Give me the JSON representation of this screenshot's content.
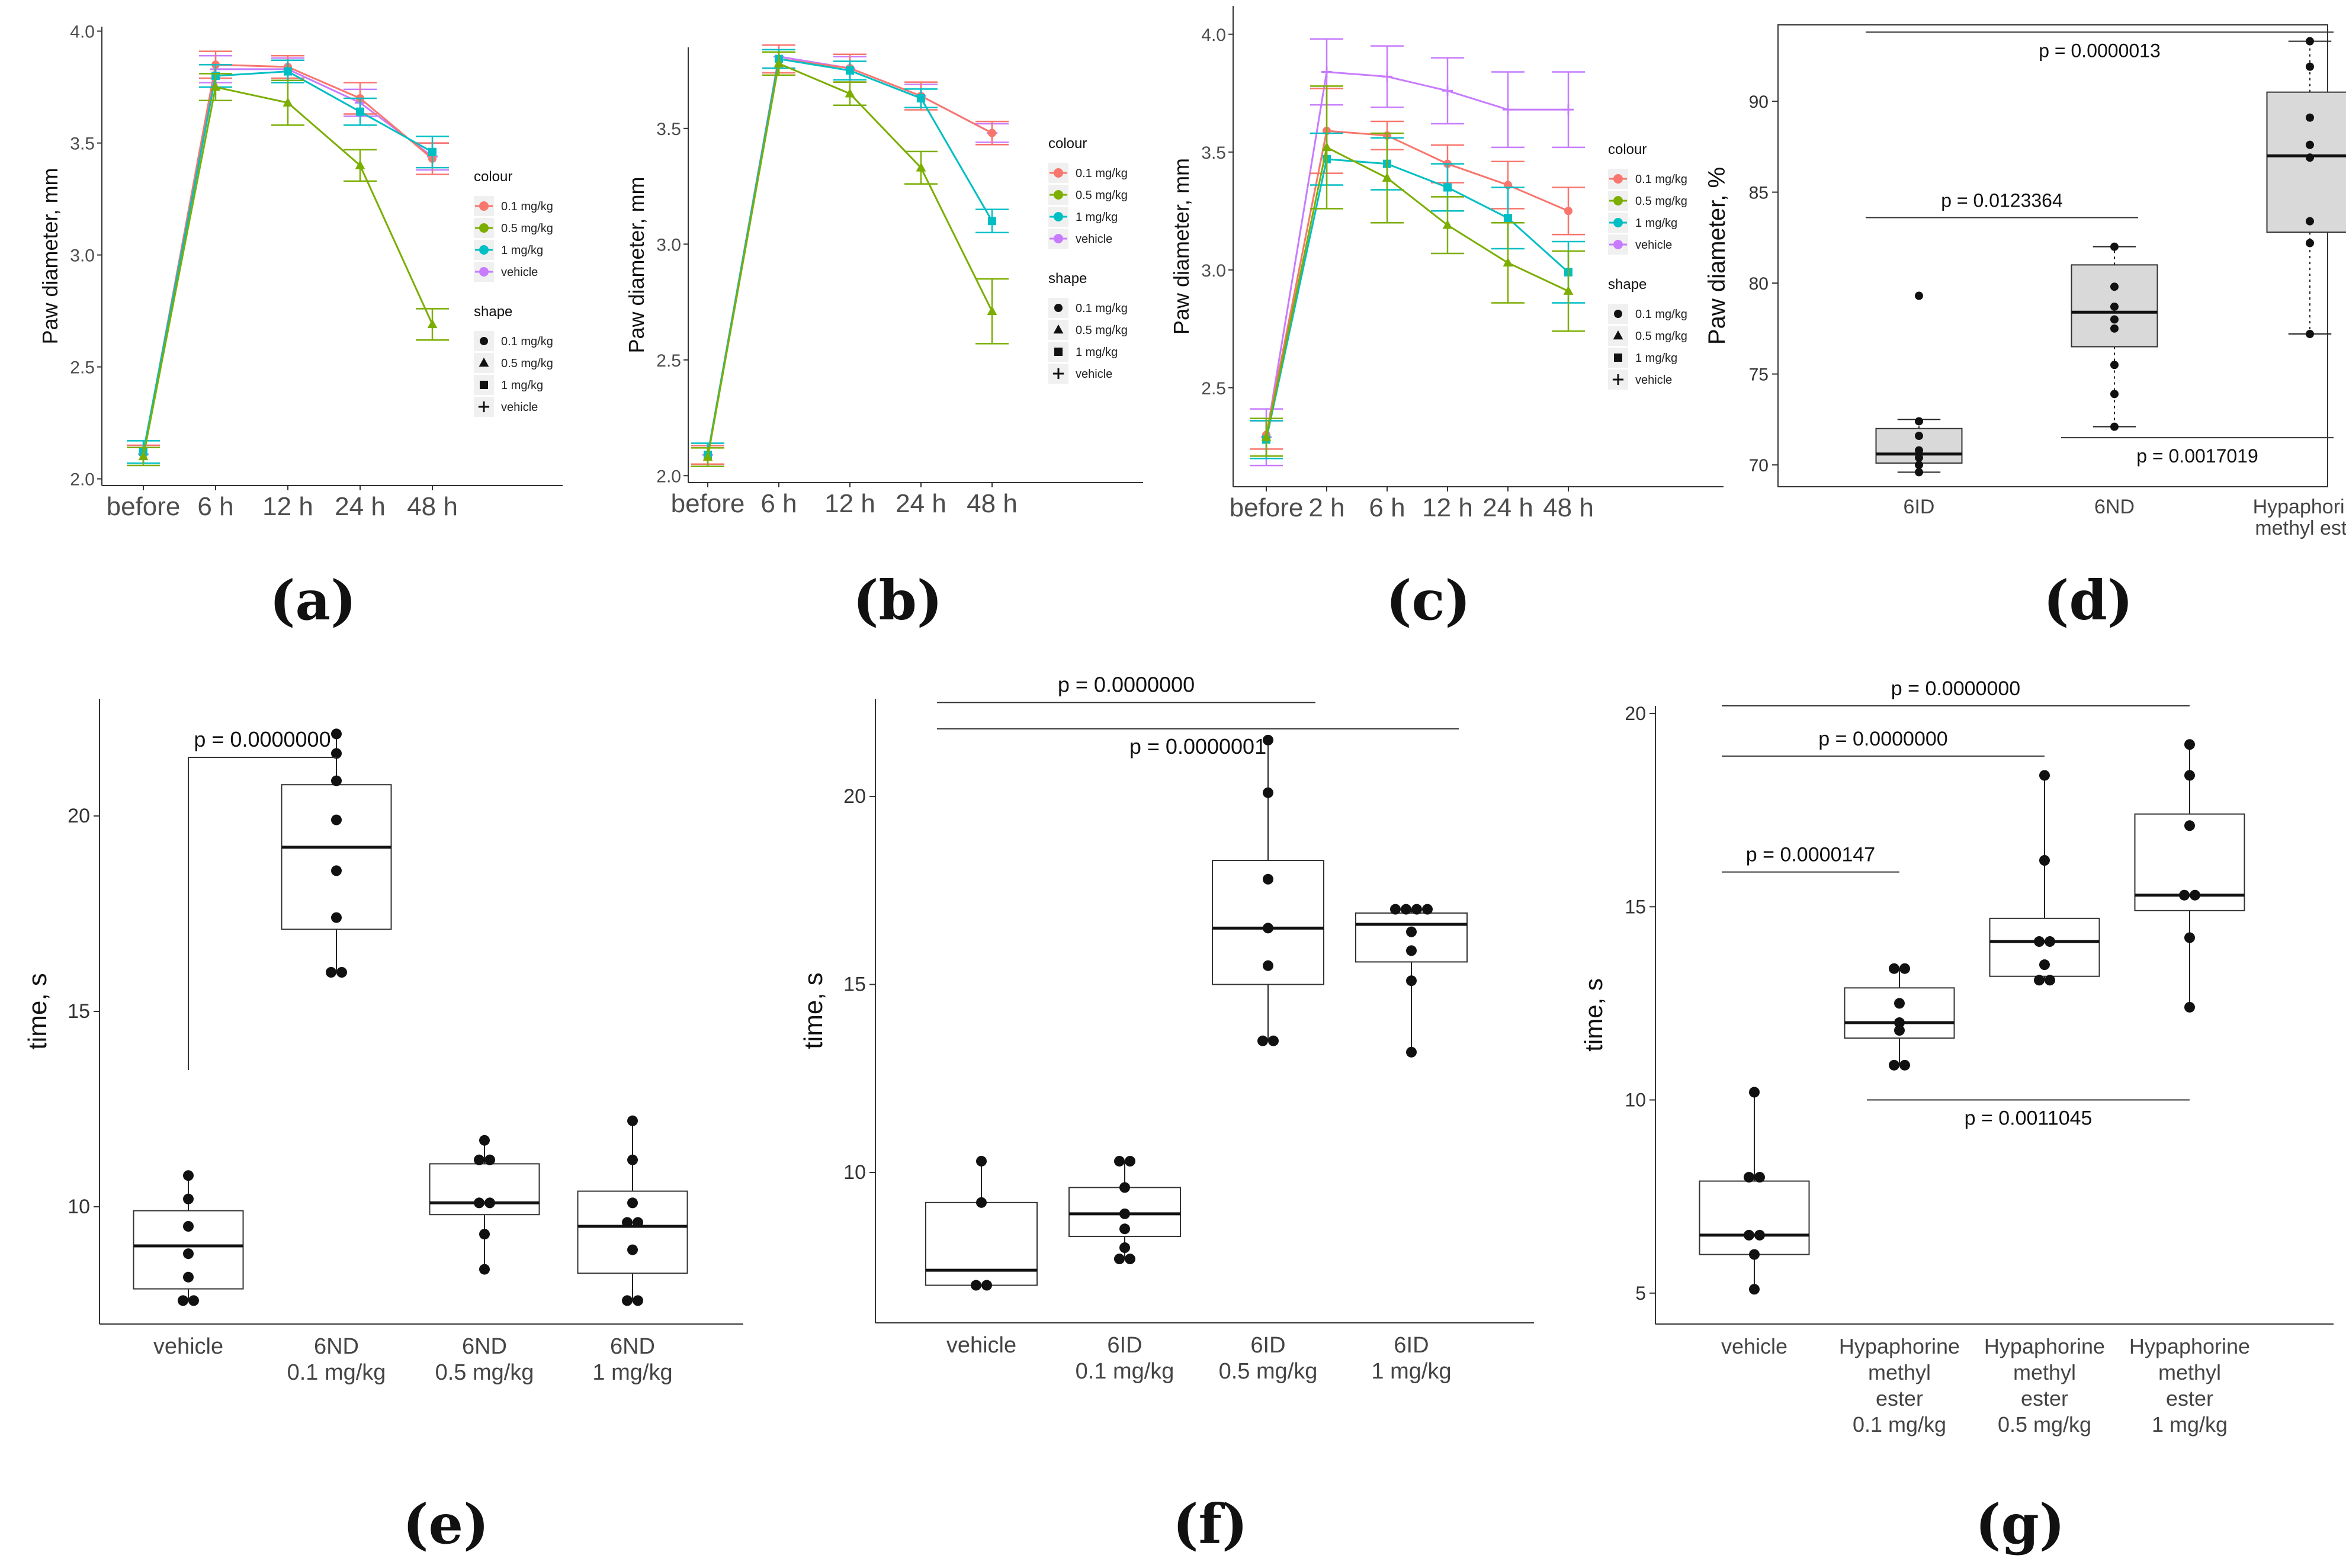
{
  "chart_data": [
    {
      "id": "a",
      "type": "line",
      "panel_label": "(a)",
      "xlabel": "",
      "ylabel": "Paw diameter, mm",
      "categories": [
        "before",
        "6 h",
        "12 h",
        "24 h",
        "48 h"
      ],
      "ylim": [
        1.97,
        4.02
      ],
      "yticks": [
        2.0,
        2.5,
        3.0,
        3.5,
        4.0
      ],
      "ytick_labels": [
        "2.0",
        "2.5",
        "3.0",
        "3.5",
        "4.0"
      ],
      "legend": {
        "colour_title": "colour",
        "shape_title": "shape",
        "placement": "right"
      },
      "series": [
        {
          "name": "0.1 mg/kg",
          "color": "#F8766D",
          "shape": "circle",
          "values": [
            2.11,
            3.85,
            3.84,
            3.7,
            3.43
          ],
          "errors": [
            0.04,
            0.06,
            0.05,
            0.07,
            0.07
          ]
        },
        {
          "name": "0.5 mg/kg",
          "color": "#7CAE00",
          "shape": "triangle",
          "values": [
            2.1,
            3.75,
            3.68,
            3.4,
            2.69
          ],
          "errors": [
            0.04,
            0.06,
            0.1,
            0.07,
            0.07
          ]
        },
        {
          "name": "1 mg/kg",
          "color": "#00BFC4",
          "shape": "square",
          "values": [
            2.12,
            3.8,
            3.82,
            3.64,
            3.46
          ],
          "errors": [
            0.05,
            0.05,
            0.05,
            0.06,
            0.07
          ]
        },
        {
          "name": "vehicle",
          "color": "#C77CFF",
          "shape": "plus",
          "values": [
            2.11,
            3.83,
            3.83,
            3.68,
            3.44
          ],
          "errors": [
            0.04,
            0.06,
            0.05,
            0.06,
            0.06
          ]
        }
      ]
    },
    {
      "id": "b",
      "type": "line",
      "panel_label": "(b)",
      "xlabel": "",
      "ylabel": "Paw diameter, mm",
      "categories": [
        "before",
        "6 h",
        "12 h",
        "24 h",
        "48 h"
      ],
      "ylim": [
        1.97,
        3.85
      ],
      "yticks": [
        2.0,
        2.5,
        3.0,
        3.5
      ],
      "ytick_labels": [
        "2.0",
        "2.5",
        "3.0",
        "3.5"
      ],
      "legend": {
        "colour_title": "colour",
        "shape_title": "shape",
        "placement": "right"
      },
      "series": [
        {
          "name": "0.1 mg/kg",
          "color": "#F8766D",
          "shape": "circle",
          "values": [
            2.09,
            3.8,
            3.76,
            3.64,
            3.48
          ],
          "errors": [
            0.04,
            0.06,
            0.06,
            0.06,
            0.05
          ]
        },
        {
          "name": "0.5 mg/kg",
          "color": "#7CAE00",
          "shape": "triangle",
          "values": [
            2.08,
            3.78,
            3.65,
            3.33,
            2.71
          ],
          "errors": [
            0.04,
            0.05,
            0.05,
            0.07,
            0.14
          ]
        },
        {
          "name": "1 mg/kg",
          "color": "#00BFC4",
          "shape": "square",
          "values": [
            2.09,
            3.8,
            3.75,
            3.63,
            3.1
          ],
          "errors": [
            0.05,
            0.04,
            0.04,
            0.04,
            0.05
          ]
        },
        {
          "name": "vehicle",
          "color": "#C77CFF",
          "shape": "plus",
          "values": [
            2.09,
            3.81,
            3.76,
            3.64,
            3.48
          ],
          "errors": [
            0.04,
            0.05,
            0.05,
            0.05,
            0.04
          ]
        }
      ]
    },
    {
      "id": "c",
      "type": "line",
      "panel_label": "(c)",
      "xlabel": "",
      "ylabel": "Paw diameter, mm",
      "categories": [
        "before",
        "2 h",
        "6 h",
        "12 h",
        "24 h",
        "48 h"
      ],
      "ylim": [
        2.08,
        4.12
      ],
      "yticks": [
        2.5,
        3.0,
        3.5,
        4.0
      ],
      "ytick_labels": [
        "2.5",
        "3.0",
        "3.5",
        "4.0"
      ],
      "legend": {
        "colour_title": "colour",
        "shape_title": "shape",
        "placement": "right"
      },
      "series": [
        {
          "name": "0.1 mg/kg",
          "color": "#F8766D",
          "shape": "circle",
          "values": [
            2.3,
            3.59,
            3.57,
            3.45,
            3.36,
            3.25
          ],
          "errors": [
            0.06,
            0.18,
            0.06,
            0.08,
            0.1,
            0.1
          ]
        },
        {
          "name": "0.5 mg/kg",
          "color": "#7CAE00",
          "shape": "triangle",
          "values": [
            2.29,
            3.52,
            3.39,
            3.19,
            3.03,
            2.91
          ],
          "errors": [
            0.08,
            0.26,
            0.19,
            0.12,
            0.17,
            0.17
          ]
        },
        {
          "name": "1 mg/kg",
          "color": "#00BFC4",
          "shape": "square",
          "values": [
            2.28,
            3.47,
            3.45,
            3.35,
            3.22,
            2.99
          ],
          "errors": [
            0.08,
            0.11,
            0.11,
            0.1,
            0.13,
            0.13
          ]
        },
        {
          "name": "vehicle",
          "color": "#C77CFF",
          "shape": "plus",
          "values": [
            2.29,
            3.84,
            3.82,
            3.76,
            3.68,
            3.68
          ],
          "errors": [
            0.12,
            0.14,
            0.13,
            0.14,
            0.16,
            0.16
          ]
        }
      ]
    },
    {
      "id": "d",
      "type": "box",
      "panel_label": "(d)",
      "xlabel": "",
      "ylabel": "Paw diameter, %",
      "ylim": [
        68.8,
        94.2
      ],
      "yticks": [
        70,
        75,
        80,
        85,
        90
      ],
      "ytick_labels": [
        "70",
        "75",
        "80",
        "85",
        "90"
      ],
      "box_fill": "#D9D9D9",
      "whisker_style": "dotted",
      "groups": [
        {
          "label": [
            "6ID"
          ],
          "min": 69.6,
          "q1": 70.1,
          "median": 70.6,
          "q3": 72.0,
          "max": 72.5,
          "points": [
            79.3,
            72.4,
            71.6,
            70.8,
            70.4,
            70.0,
            69.6
          ]
        },
        {
          "label": [
            "6ND"
          ],
          "min": 72.1,
          "q1": 76.5,
          "median": 78.4,
          "q3": 81.0,
          "max": 82.0,
          "points": [
            82.0,
            79.8,
            78.7,
            78.0,
            77.5,
            75.5,
            73.9,
            72.1
          ]
        },
        {
          "label": [
            "Hypaphorine",
            "methyl ester"
          ],
          "min": 77.2,
          "q1": 82.8,
          "median": 87.0,
          "q3": 90.5,
          "max": 93.3,
          "points": [
            93.3,
            91.9,
            89.1,
            87.6,
            86.9,
            83.4,
            82.2,
            77.2
          ]
        }
      ],
      "comparisons": [
        {
          "text": "p = 0.0000013",
          "x_from": 1,
          "x_to": 3,
          "y": 93.8,
          "label_side": "below"
        },
        {
          "text": "p = 0.0123364",
          "x_from": 1,
          "x_to": 2,
          "y": 83.6,
          "label_side": "above"
        },
        {
          "text": "p = 0.0017019",
          "x_from": 2,
          "x_to": 3,
          "y": 71.5,
          "label_side": "below"
        }
      ]
    },
    {
      "id": "e",
      "type": "box",
      "panel_label": "(e)",
      "xlabel": "",
      "ylabel": "time, s",
      "ylim": [
        7.0,
        23.0
      ],
      "yticks": [
        10,
        15,
        20
      ],
      "ytick_labels": [
        "10",
        "15",
        "20"
      ],
      "box_fill": "#FFFFFF",
      "whisker_style": "solid",
      "groups": [
        {
          "label": [
            "vehicle"
          ],
          "min": 7.6,
          "q1": 7.9,
          "median": 9.0,
          "q3": 9.9,
          "max": 10.8,
          "points": [
            10.8,
            10.2,
            9.5,
            8.8,
            8.2,
            7.6,
            7.6
          ]
        },
        {
          "label": [
            "6ND",
            "0.1 mg/kg"
          ],
          "min": 16.0,
          "q1": 17.1,
          "median": 19.2,
          "q3": 20.8,
          "max": 22.1,
          "points": [
            22.1,
            21.6,
            20.9,
            19.9,
            18.6,
            17.4,
            16.0,
            16.0
          ]
        },
        {
          "label": [
            "6ND",
            "0.5 mg/kg"
          ],
          "min": 8.4,
          "q1": 9.8,
          "median": 10.1,
          "q3": 11.1,
          "max": 11.7,
          "points": [
            11.7,
            11.2,
            11.2,
            10.1,
            10.1,
            9.3,
            8.4
          ]
        },
        {
          "label": [
            "6ND",
            "1 mg/kg"
          ],
          "min": 7.6,
          "q1": 8.3,
          "median": 9.5,
          "q3": 10.4,
          "max": 12.2,
          "points": [
            12.2,
            11.2,
            10.1,
            9.6,
            9.6,
            8.9,
            7.6,
            7.6
          ]
        }
      ],
      "comparisons": [
        {
          "text": "p = 0.0000000",
          "x_from": 1,
          "x_to": 2,
          "y": 21.5,
          "drop_to": 13.5,
          "label_side": "above"
        }
      ]
    },
    {
      "id": "f",
      "type": "box",
      "panel_label": "(f)",
      "xlabel": "",
      "ylabel": "time, s",
      "ylim": [
        6.0,
        22.6
      ],
      "yticks": [
        10,
        15,
        20
      ],
      "ytick_labels": [
        "10",
        "15",
        "20"
      ],
      "box_fill": "#FFFFFF",
      "whisker_style": "solid",
      "groups": [
        {
          "label": [
            "vehicle"
          ],
          "min": 7.0,
          "q1": 7.0,
          "median": 7.4,
          "q3": 9.2,
          "max": 10.3,
          "points": [
            10.3,
            9.2,
            7.0,
            7.0
          ]
        },
        {
          "label": [
            "6ID",
            "0.1 mg/kg"
          ],
          "min": 7.7,
          "q1": 8.3,
          "median": 8.9,
          "q3": 9.6,
          "max": 10.3,
          "points": [
            10.3,
            10.3,
            9.6,
            8.9,
            8.5,
            8.0,
            7.7,
            7.7
          ]
        },
        {
          "label": [
            "6ID",
            "0.5 mg/kg"
          ],
          "min": 13.5,
          "q1": 15.0,
          "median": 16.5,
          "q3": 18.3,
          "max": 21.5,
          "points": [
            21.5,
            20.1,
            17.8,
            16.5,
            15.5,
            13.5,
            13.5
          ]
        },
        {
          "label": [
            "6ID",
            "1 mg/kg"
          ],
          "min": 13.2,
          "q1": 15.6,
          "median": 16.6,
          "q3": 16.9,
          "max": 17.0,
          "points": [
            17.0,
            17.0,
            17.0,
            17.0,
            16.4,
            15.9,
            15.1,
            13.2
          ]
        }
      ],
      "comparisons": [
        {
          "text": "p = 0.0000000",
          "x_from": 1,
          "x_to": 3,
          "y": 22.5,
          "label_side": "above"
        },
        {
          "text": "p = 0.0000001",
          "x_from": 1,
          "x_to": 4,
          "y": 21.8,
          "label_side": "below"
        }
      ]
    },
    {
      "id": "g",
      "type": "box",
      "panel_label": "(g)",
      "xlabel": "",
      "ylabel": "time, s",
      "ylim": [
        4.2,
        20.2
      ],
      "yticks": [
        5,
        10,
        15,
        20
      ],
      "ytick_labels": [
        "5",
        "10",
        "15",
        "20"
      ],
      "box_fill": "#FFFFFF",
      "whisker_style": "solid",
      "groups": [
        {
          "label": [
            "vehicle"
          ],
          "min": 5.1,
          "q1": 6.0,
          "median": 6.5,
          "q3": 7.9,
          "max": 10.2,
          "points": [
            10.2,
            8.0,
            8.0,
            6.5,
            6.5,
            6.0,
            5.1
          ]
        },
        {
          "label": [
            "Hypaphorine",
            "methyl",
            "ester",
            "0.1 mg/kg"
          ],
          "min": 10.9,
          "q1": 11.6,
          "median": 12.0,
          "q3": 12.9,
          "max": 13.4,
          "points": [
            13.4,
            13.4,
            12.5,
            12.0,
            11.8,
            10.9,
            10.9
          ]
        },
        {
          "label": [
            "Hypaphorine",
            "methyl",
            "ester",
            "0.5 mg/kg"
          ],
          "min": 13.1,
          "q1": 13.2,
          "median": 14.1,
          "q3": 14.7,
          "max": 18.4,
          "points": [
            18.4,
            16.2,
            14.1,
            14.1,
            13.5,
            13.1,
            13.1
          ]
        },
        {
          "label": [
            "Hypaphorine",
            "methyl",
            "ester",
            "1 mg/kg"
          ],
          "min": 12.4,
          "q1": 14.9,
          "median": 15.3,
          "q3": 17.4,
          "max": 19.2,
          "points": [
            19.2,
            18.4,
            17.1,
            15.3,
            15.3,
            14.2,
            12.4
          ]
        }
      ],
      "comparisons": [
        {
          "text": "p = 0.0000000",
          "x_from": 1,
          "x_to": 4,
          "y": 20.2,
          "label_side": "above"
        },
        {
          "text": "p = 0.0000000",
          "x_from": 1,
          "x_to": 3,
          "y": 18.9,
          "label_side": "above"
        },
        {
          "text": "p = 0.0000147",
          "x_from": 1,
          "x_to": 2,
          "y": 15.9,
          "label_side": "above"
        },
        {
          "text": "p = 0.0011045",
          "x_from": 2,
          "x_to": 4,
          "y": 10.0,
          "label_side": "below"
        }
      ]
    }
  ]
}
